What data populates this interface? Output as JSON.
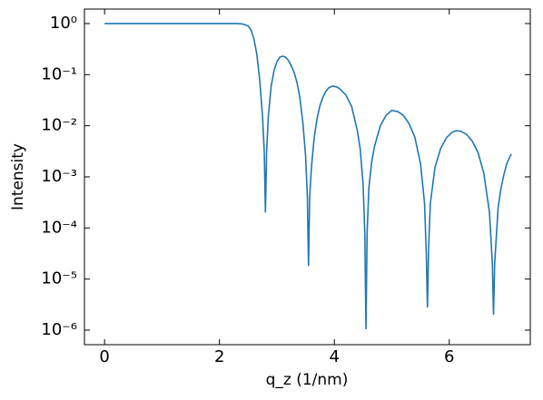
{
  "chart_data": {
    "type": "line",
    "xlabel": "q_z (1/nm)",
    "ylabel": "Intensity",
    "yscale": "log",
    "color": "#1f77b4",
    "xlim": [
      -0.35,
      7.41
    ],
    "xticks": [
      0,
      2,
      4,
      6
    ],
    "ylim": [
      5.2e-07,
      1.92
    ],
    "yticks": [
      {
        "value": 1,
        "label": "10⁰"
      },
      {
        "value": 0.1,
        "label": "10⁻¹"
      },
      {
        "value": 0.01,
        "label": "10⁻²"
      },
      {
        "value": 0.001,
        "label": "10⁻³"
      },
      {
        "value": 0.0001,
        "label": "10⁻⁴"
      },
      {
        "value": 1e-05,
        "label": "10⁻⁵"
      },
      {
        "value": 1e-06,
        "label": "10⁻⁶"
      }
    ],
    "x": [
      0,
      0.5,
      1,
      1.5,
      2,
      2.3,
      2.4,
      2.5,
      2.55,
      2.6,
      2.65,
      2.7,
      2.75,
      2.78,
      2.8,
      2.82,
      2.85,
      2.9,
      2.95,
      3.0,
      3.05,
      3.1,
      3.15,
      3.2,
      3.25,
      3.3,
      3.35,
      3.4,
      3.45,
      3.5,
      3.53,
      3.55,
      3.57,
      3.6,
      3.65,
      3.7,
      3.75,
      3.8,
      3.85,
      3.9,
      3.97,
      4.05,
      4.1,
      4.2,
      4.3,
      4.4,
      4.45,
      4.5,
      4.53,
      4.55,
      4.57,
      4.6,
      4.65,
      4.7,
      4.8,
      4.9,
      5.0,
      5.1,
      5.2,
      5.3,
      5.4,
      5.5,
      5.57,
      5.6,
      5.62,
      5.64,
      5.67,
      5.75,
      5.85,
      5.95,
      6.05,
      6.12,
      6.2,
      6.3,
      6.4,
      6.5,
      6.6,
      6.7,
      6.75,
      6.77,
      6.79,
      6.85,
      6.9,
      6.95,
      7.0,
      7.05,
      7.08
    ],
    "values": [
      1,
      1,
      1,
      1,
      1,
      1,
      0.98,
      0.9,
      0.75,
      0.5,
      0.25,
      0.08,
      0.015,
      0.003,
      0.0002,
      0.003,
      0.015,
      0.06,
      0.12,
      0.18,
      0.22,
      0.23,
      0.22,
      0.19,
      0.15,
      0.11,
      0.07,
      0.035,
      0.012,
      0.0025,
      0.0004,
      1.8e-05,
      0.0004,
      0.0015,
      0.006,
      0.014,
      0.025,
      0.036,
      0.047,
      0.055,
      0.06,
      0.057,
      0.052,
      0.04,
      0.024,
      0.008,
      0.0035,
      0.0007,
      8e-05,
      1.05e-06,
      8e-05,
      0.0006,
      0.002,
      0.004,
      0.01,
      0.016,
      0.02,
      0.019,
      0.016,
      0.011,
      0.006,
      0.0018,
      0.0003,
      3e-05,
      2.8e-06,
      4e-05,
      0.0003,
      0.0015,
      0.0036,
      0.0058,
      0.0075,
      0.008,
      0.0078,
      0.0068,
      0.005,
      0.003,
      0.0012,
      0.0002,
      2e-05,
      2e-06,
      2e-05,
      0.00025,
      0.0006,
      0.0011,
      0.0018,
      0.0024,
      0.0028
    ]
  }
}
